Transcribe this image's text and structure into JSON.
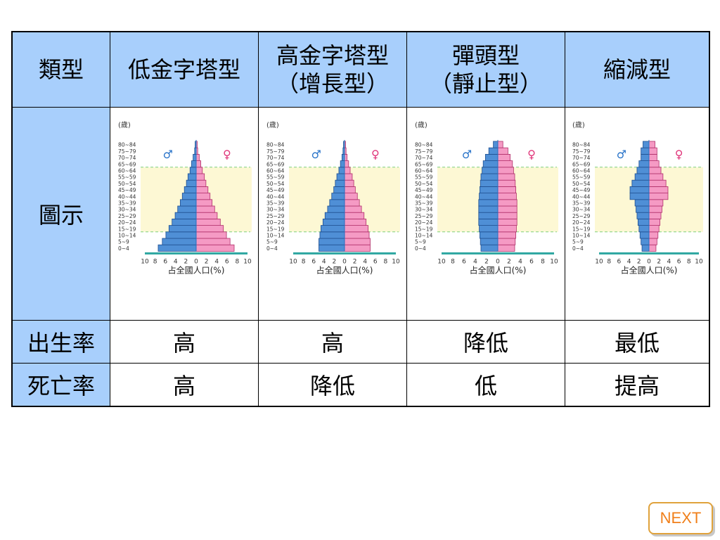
{
  "table": {
    "header": {
      "type_label": "類型",
      "col1": [
        "低金字塔型"
      ],
      "col2": [
        "高金字塔型",
        "（增長型）"
      ],
      "col3": [
        "彈頭型",
        "（靜止型）"
      ],
      "col4": [
        "縮減型"
      ]
    },
    "rows": {
      "diagram_label": "圖示",
      "birth_label": "出生率",
      "death_label": "死亡率",
      "birth": [
        "高",
        "高",
        "降低",
        "最低"
      ],
      "death": [
        "高",
        "降低",
        "低",
        "提高"
      ]
    }
  },
  "chart_common": {
    "age_unit": "(歲)",
    "age_groups": [
      "0~4",
      "5~9",
      "10~14",
      "15~19",
      "20~24",
      "25~29",
      "30~34",
      "35~39",
      "40~44",
      "45~49",
      "50~54",
      "55~59",
      "60~64",
      "65~69",
      "70~74",
      "75~79",
      "80~84"
    ],
    "x_ticks": [
      "10",
      "8",
      "6",
      "4",
      "2",
      "0",
      "2",
      "4",
      "6",
      "8",
      "10"
    ],
    "xlabel": "占全國人口(%)",
    "male_symbol": "♂",
    "female_symbol": "♀",
    "colors": {
      "male": "#4f8fd6",
      "female": "#f59ac4",
      "band": "#fdf8d4",
      "dash": "#7fcf7f",
      "axis": "#2a6fbf"
    }
  },
  "chart_data": [
    {
      "type": "bar",
      "name": "低金字塔型",
      "male": [
        7.4,
        6.6,
        5.9,
        5.3,
        4.7,
        4.1,
        3.6,
        3.1,
        2.7,
        2.3,
        1.9,
        1.6,
        1.2,
        0.9,
        0.6,
        0.3,
        0.2
      ],
      "female": [
        7.4,
        6.6,
        5.9,
        5.3,
        4.7,
        4.1,
        3.6,
        3.1,
        2.7,
        2.3,
        1.9,
        1.6,
        1.2,
        0.9,
        0.6,
        0.3,
        0.2
      ],
      "xlim": [
        -10,
        10
      ]
    },
    {
      "type": "bar",
      "name": "高金字塔型",
      "male": [
        5.0,
        5.0,
        4.8,
        4.6,
        4.2,
        3.8,
        3.3,
        2.9,
        2.5,
        2.1,
        1.8,
        1.5,
        1.1,
        0.8,
        0.5,
        0.3,
        0.2
      ],
      "female": [
        5.0,
        5.0,
        4.8,
        4.6,
        4.2,
        3.8,
        3.3,
        2.9,
        2.5,
        2.1,
        1.8,
        1.5,
        1.1,
        0.8,
        0.5,
        0.3,
        0.2
      ],
      "xlim": [
        -10,
        10
      ]
    },
    {
      "type": "bar",
      "name": "彈頭型",
      "male": [
        3.0,
        3.1,
        3.2,
        3.3,
        3.4,
        3.4,
        3.4,
        3.4,
        3.3,
        3.2,
        3.1,
        3.0,
        2.8,
        2.6,
        2.2,
        1.6,
        0.8
      ],
      "female": [
        3.0,
        3.1,
        3.2,
        3.3,
        3.4,
        3.4,
        3.4,
        3.4,
        3.3,
        3.2,
        3.1,
        3.0,
        2.8,
        2.6,
        2.2,
        1.8,
        0.9
      ],
      "xlim": [
        -10,
        10
      ]
    },
    {
      "type": "bar",
      "name": "縮減型",
      "male": [
        1.4,
        1.6,
        1.8,
        2.0,
        2.2,
        2.4,
        2.6,
        2.8,
        3.8,
        3.8,
        3.4,
        2.8,
        2.4,
        2.0,
        1.6,
        1.6,
        1.2
      ],
      "female": [
        1.4,
        1.6,
        1.8,
        2.0,
        2.2,
        2.4,
        2.6,
        2.8,
        3.8,
        3.8,
        3.4,
        2.8,
        2.4,
        2.0,
        1.6,
        1.6,
        1.2
      ],
      "xlim": [
        -10,
        10
      ]
    }
  ],
  "nav": {
    "next_label": "NEXT"
  }
}
